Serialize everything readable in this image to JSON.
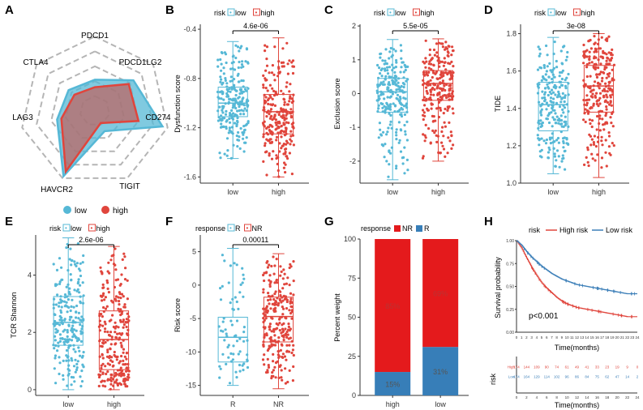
{
  "colors": {
    "low": "#56B8D6",
    "high": "#E0453C",
    "R_bar": "#377EB8",
    "NR_bar": "#E41A1C",
    "axis": "#333333",
    "grid": "#bbbbbb"
  },
  "chart_data": [
    {
      "panel": "A",
      "type": "radar",
      "axes": [
        "PDCD1",
        "PDCD1LG2",
        "CD274",
        "TIGIT",
        "HAVCR2",
        "LAG3",
        "CTLA4"
      ],
      "series": [
        {
          "name": "low",
          "values": [
            0.42,
            0.66,
            0.93,
            0.3,
            0.97,
            0.52,
            0.45
          ]
        },
        {
          "name": "high",
          "values": [
            0.32,
            0.58,
            0.6,
            0.18,
            0.9,
            0.46,
            0.35
          ]
        }
      ],
      "legend": [
        "low",
        "high"
      ]
    },
    {
      "panel": "B",
      "type": "box",
      "legend_title": "risk",
      "legend_items": [
        "low",
        "high"
      ],
      "categories": [
        "low",
        "high"
      ],
      "ylabel": "Dysfunction score",
      "ylim": [
        -1.65,
        -0.36
      ],
      "yticks": [
        "-1.6",
        "-1.2",
        "-0.8",
        "-0.4"
      ],
      "pvalue": "4.6e-06",
      "boxes": [
        {
          "name": "low",
          "min": -1.45,
          "q1": -1.11,
          "median": -1.0,
          "q3": -0.87,
          "max": -0.5,
          "n": 230
        },
        {
          "name": "high",
          "min": -1.6,
          "q1": -1.25,
          "median": -1.07,
          "q3": -0.93,
          "max": -0.47,
          "n": 250
        }
      ]
    },
    {
      "panel": "C",
      "type": "box",
      "legend_title": "risk",
      "legend_items": [
        "low",
        "high"
      ],
      "categories": [
        "low",
        "high"
      ],
      "ylabel": "Exclusion score",
      "ylim": [
        -2.65,
        2.05
      ],
      "yticks": [
        "-2",
        "-1",
        "0",
        "1",
        "2"
      ],
      "pvalue": "5.5e-05",
      "boxes": [
        {
          "name": "low",
          "min": -2.55,
          "q1": -0.55,
          "median": 0.05,
          "q3": 0.45,
          "max": 1.6,
          "n": 230
        },
        {
          "name": "high",
          "min": -2.0,
          "q1": -0.2,
          "median": 0.3,
          "q3": 0.68,
          "max": 1.62,
          "n": 250
        }
      ]
    },
    {
      "panel": "D",
      "type": "box",
      "legend_title": "risk",
      "legend_items": [
        "low",
        "high"
      ],
      "categories": [
        "low",
        "high"
      ],
      "ylabel": "TIDE",
      "ylim": [
        1.0,
        1.85
      ],
      "yticks": [
        "1.0",
        "1.2",
        "1.4",
        "1.6",
        "1.8"
      ],
      "pvalue": "3e-08",
      "boxes": [
        {
          "name": "low",
          "min": 1.05,
          "q1": 1.28,
          "median": 1.42,
          "q3": 1.54,
          "max": 1.78,
          "n": 230
        },
        {
          "name": "high",
          "min": 1.03,
          "q1": 1.38,
          "median": 1.52,
          "q3": 1.63,
          "max": 1.8,
          "n": 250
        }
      ]
    },
    {
      "panel": "E",
      "type": "box",
      "legend_title": "risk",
      "legend_items": [
        "low",
        "high"
      ],
      "categories": [
        "low",
        "high"
      ],
      "ylabel": "TCR Shannon",
      "ylim": [
        -0.2,
        5.4
      ],
      "yticks": [
        "0",
        "2",
        "4"
      ],
      "pvalue": "2.6e-06",
      "boxes": [
        {
          "name": "low",
          "min": 0.0,
          "q1": 1.55,
          "median": 2.35,
          "q3": 3.25,
          "max": 5.3,
          "n": 230
        },
        {
          "name": "high",
          "min": 0.0,
          "q1": 0.7,
          "median": 1.75,
          "q3": 2.75,
          "max": 5.0,
          "n": 250
        }
      ]
    },
    {
      "panel": "F",
      "type": "box",
      "legend_title": "response",
      "legend_items": [
        "R",
        "NR"
      ],
      "categories": [
        "R",
        "NR"
      ],
      "ylabel": "Risk score",
      "ylim": [
        -16.5,
        7.5
      ],
      "yticks": [
        "-15",
        "-10",
        "-5",
        "0",
        "5"
      ],
      "pvalue": "0.00011",
      "boxes": [
        {
          "name": "R",
          "min": -15.0,
          "q1": -11.5,
          "median": -7.8,
          "q3": -4.8,
          "max": 5.5,
          "n": 70
        },
        {
          "name": "NR",
          "min": -15.5,
          "q1": -8.5,
          "median": -4.7,
          "q3": -1.8,
          "max": 4.7,
          "n": 250
        }
      ]
    },
    {
      "panel": "G",
      "type": "bar",
      "stacked": true,
      "legend_title": "response",
      "legend_items": [
        "NR",
        "R"
      ],
      "categories": [
        "high",
        "low"
      ],
      "ylabel": "Percent weight",
      "ylim": [
        0,
        100
      ],
      "yticks": [
        "0",
        "25",
        "50",
        "75",
        "100"
      ],
      "series": [
        {
          "name": "R",
          "values": [
            15,
            31
          ],
          "labels": [
            "15%",
            "31%"
          ]
        },
        {
          "name": "NR",
          "values": [
            85,
            69
          ],
          "labels": [
            "85%",
            "69%"
          ]
        }
      ]
    },
    {
      "panel": "H",
      "type": "line",
      "subtype": "kaplan-meier",
      "legend_title": "risk",
      "legend_items": [
        "High risk",
        "Low risk"
      ],
      "ylabel": "Survival probability",
      "xlabel": "Time(months)",
      "pvalue": "p<0.001",
      "xticks": [
        "0",
        "1",
        "2",
        "3",
        "4",
        "5",
        "6",
        "7",
        "8",
        "9",
        "10",
        "11",
        "12",
        "13",
        "14",
        "15",
        "16",
        "17",
        "18",
        "19",
        "20",
        "21",
        "22",
        "23",
        "24"
      ],
      "yticks": [
        "0.00",
        "0.25",
        "0.50",
        "0.75",
        "1.00"
      ],
      "series": [
        {
          "name": "High risk",
          "x": [
            0,
            1,
            2,
            3,
            4,
            5,
            6,
            7,
            8,
            9,
            10,
            11,
            12,
            13,
            14,
            15,
            16,
            17,
            18,
            19,
            20,
            21,
            22,
            23,
            24
          ],
          "y": [
            1.0,
            0.92,
            0.81,
            0.71,
            0.62,
            0.54,
            0.48,
            0.43,
            0.38,
            0.34,
            0.31,
            0.29,
            0.27,
            0.26,
            0.25,
            0.24,
            0.23,
            0.22,
            0.21,
            0.2,
            0.19,
            0.18,
            0.17,
            0.17,
            0.17
          ]
        },
        {
          "name": "Low risk",
          "x": [
            0,
            1,
            2,
            3,
            4,
            5,
            6,
            7,
            8,
            9,
            10,
            11,
            12,
            13,
            14,
            15,
            16,
            17,
            18,
            19,
            20,
            21,
            22,
            23,
            24
          ],
          "y": [
            1.0,
            0.95,
            0.88,
            0.82,
            0.77,
            0.72,
            0.68,
            0.64,
            0.61,
            0.58,
            0.56,
            0.54,
            0.52,
            0.51,
            0.5,
            0.49,
            0.48,
            0.47,
            0.46,
            0.45,
            0.44,
            0.43,
            0.42,
            0.42,
            0.42
          ]
        }
      ],
      "risk_table": {
        "title": "risk",
        "xlabel": "Time(months)",
        "rows": [
          {
            "name": "High",
            "values": [
              "174",
              "144",
              "109",
              "90",
              "74",
              "61",
              "49",
              "41",
              "33",
              "23",
              "19",
              "9",
              "0"
            ]
          },
          {
            "name": "Low",
            "values": [
              "174",
              "164",
              "129",
              "114",
              "102",
              "96",
              "86",
              "84",
              "75",
              "62",
              "47",
              "14",
              "2"
            ]
          }
        ],
        "ticks": [
          "0",
          "2",
          "4",
          "6",
          "8",
          "10",
          "12",
          "14",
          "16",
          "18",
          "20",
          "22",
          "24"
        ]
      }
    }
  ],
  "panel_letters": [
    "A",
    "B",
    "C",
    "D",
    "E",
    "F",
    "G",
    "H"
  ]
}
